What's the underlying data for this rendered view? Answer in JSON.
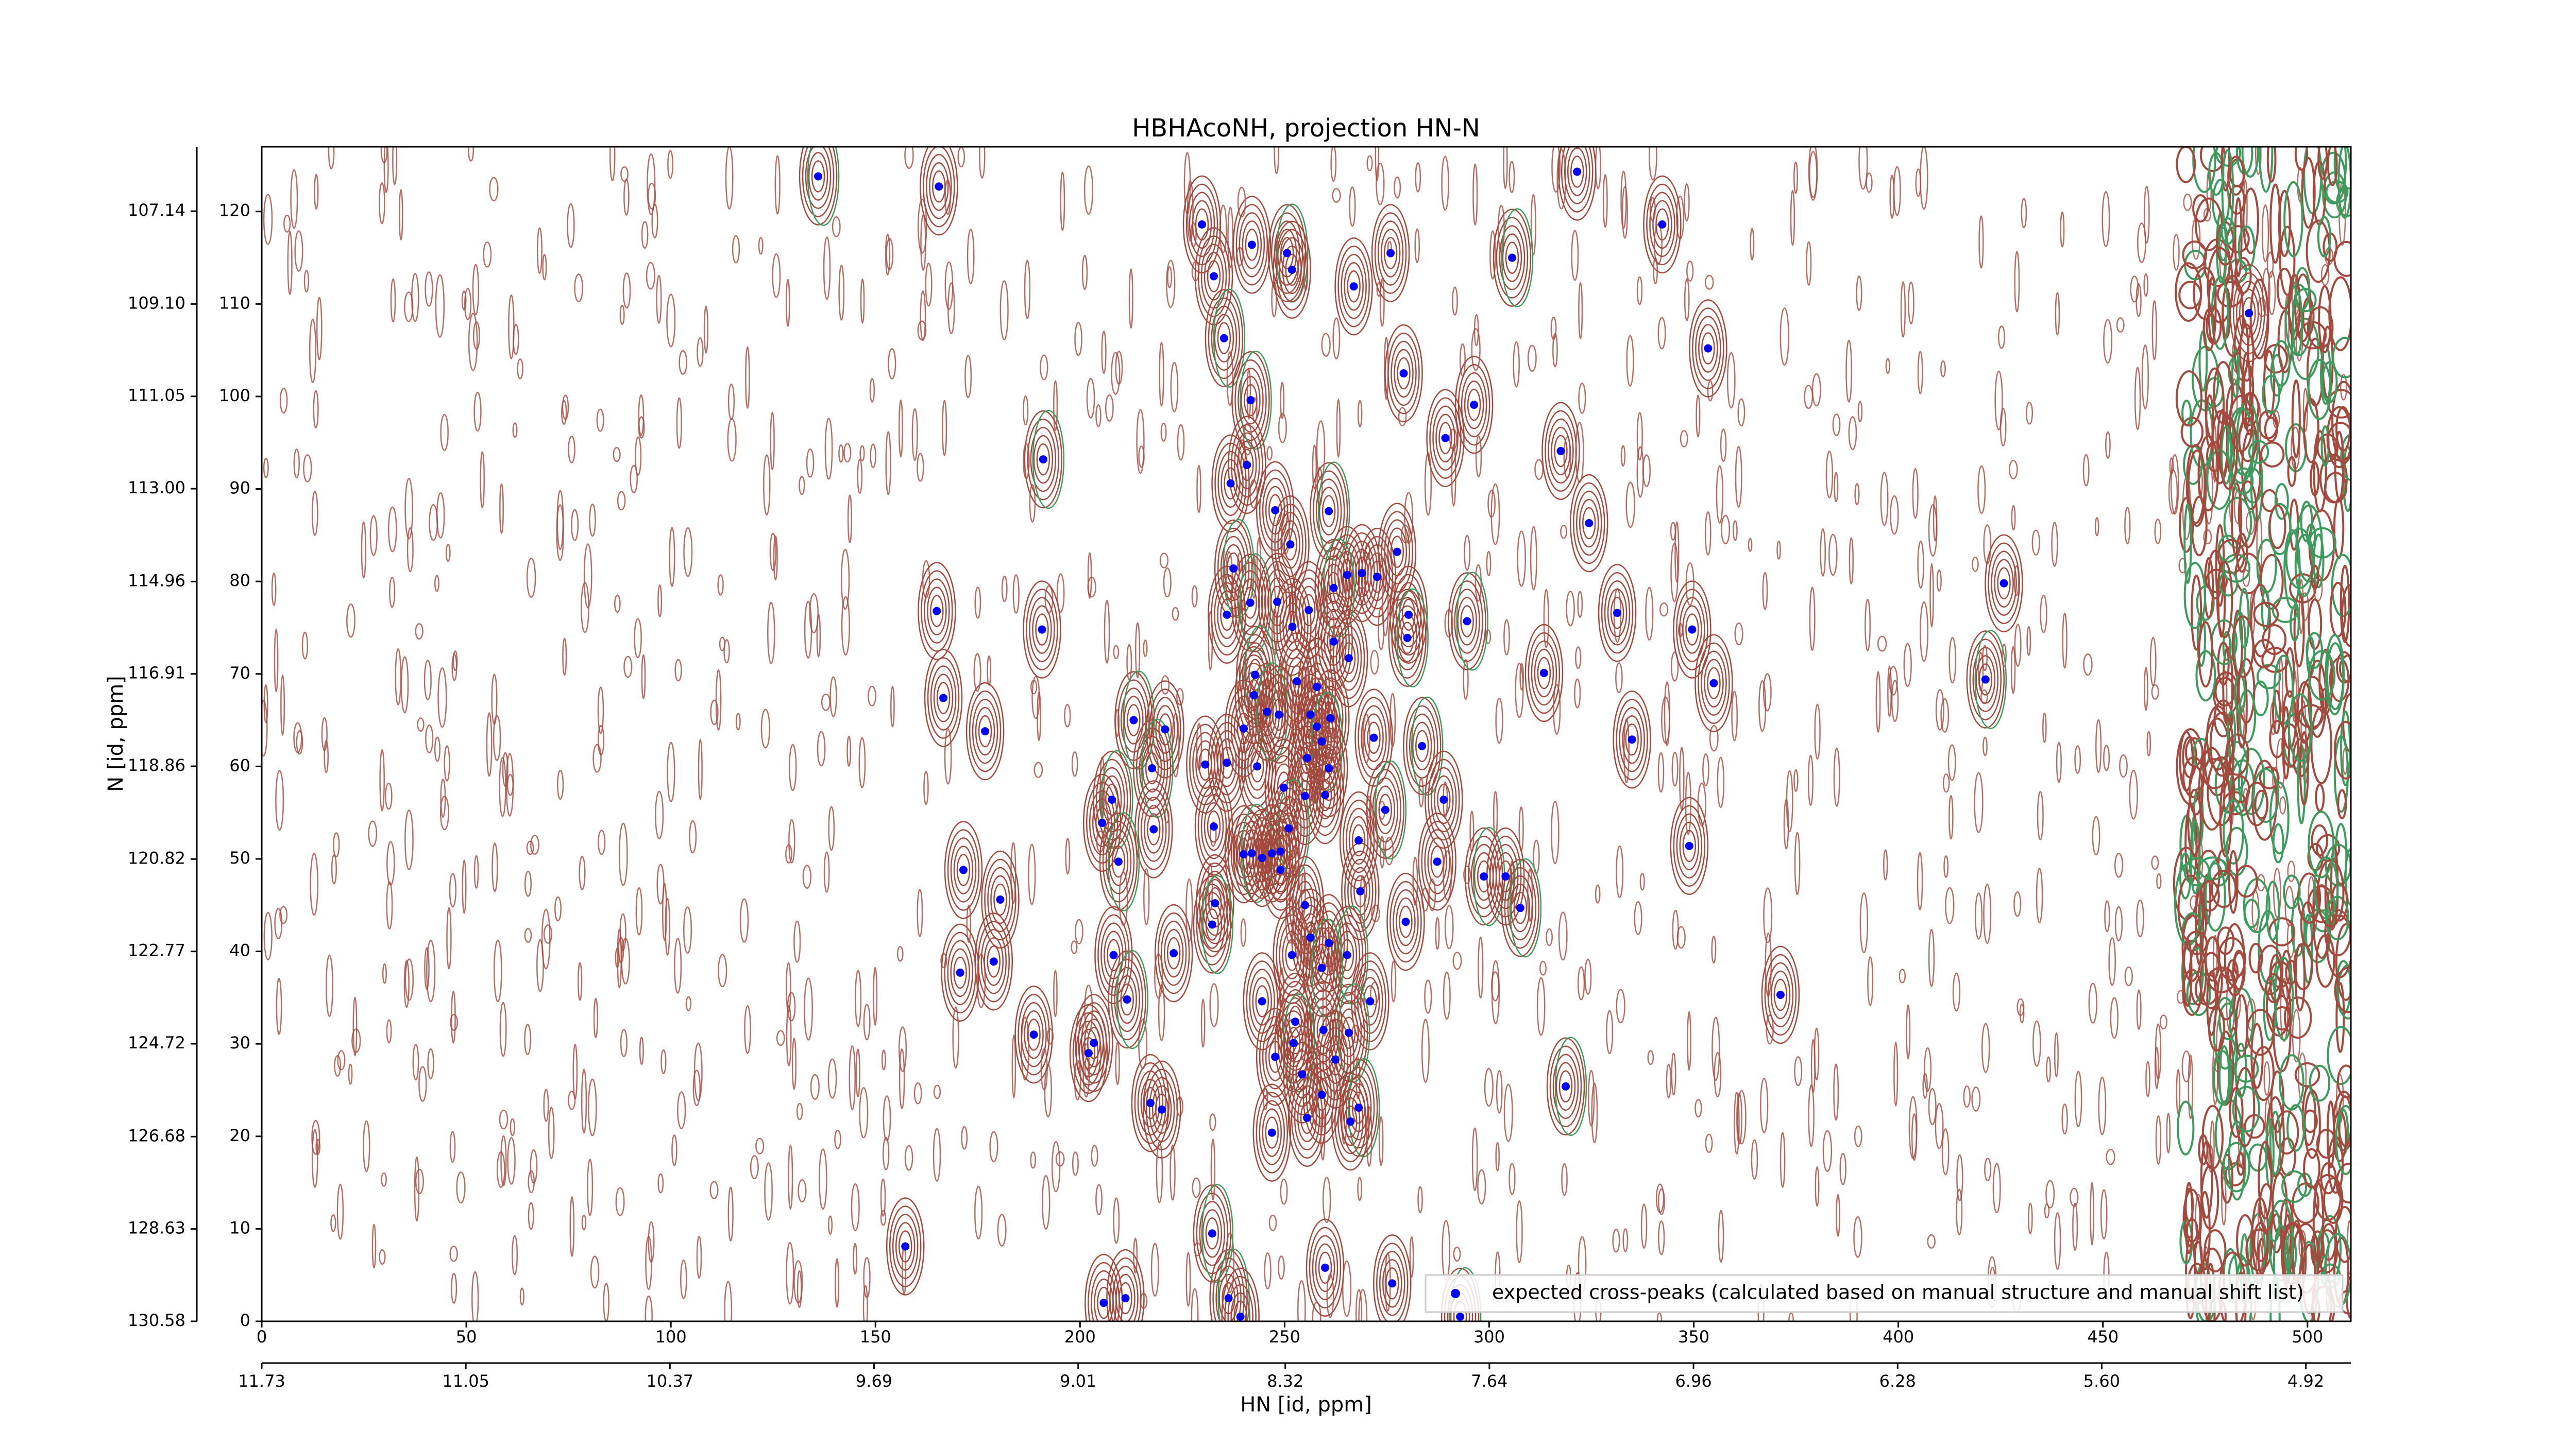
{
  "chart_data": {
    "type": "scatter",
    "title": "HBHAcoNH, projection HN-N",
    "x_label": "HN [id, ppm]",
    "y_label": "N [id, ppm]",
    "xlim": [
      0,
      510.6
    ],
    "ylim": [
      0,
      127
    ],
    "xticks": [
      0,
      50,
      100,
      150,
      200,
      250,
      300,
      350,
      400,
      450,
      500
    ],
    "yticks": [
      0,
      10,
      20,
      30,
      40,
      50,
      60,
      70,
      80,
      90,
      100,
      110,
      120
    ],
    "x2lim": [
      11.73,
      4.77
    ],
    "x2ticks": [
      11.73,
      11.05,
      10.37,
      9.69,
      9.01,
      8.32,
      7.64,
      6.96,
      6.28,
      {
        "value": 5.6,
        "label": "5.60"
      },
      4.92
    ],
    "y2lim": [
      130.58,
      105.78
    ],
    "y2ticks": [
      107.14,
      {
        "value": 109.1,
        "label": "109.10"
      },
      111.05,
      {
        "value": 113,
        "label": "113.00"
      },
      114.96,
      116.91,
      118.86,
      120.82,
      122.77,
      124.72,
      126.68,
      128.63,
      130.58
    ],
    "legend": "lower right",
    "series": [
      {
        "name": "expected cross-peaks (calculated based on manual structure and manual shift list)",
        "color": "#0000ff",
        "x": [
          136,
          165.5,
          229.8,
          242,
          250.6,
          251.8,
          266.9,
          275.9,
          305.6,
          321.5,
          342.3,
          232.7,
          235.2,
          353.5,
          485.7,
          279.1,
          241.7,
          296.3,
          289.3,
          317.5,
          191,
          240.8,
          236.8,
          247.7,
          260.8,
          324.4,
          251.4,
          277.5,
          237.5,
          268.9,
          272.6,
          265.3,
          262,
          425.8,
          165,
          235.9,
          241.6,
          248.2,
          255.9,
          280.3,
          294.6,
          331.3,
          190.7,
          251.9,
          280,
          349.6,
          262,
          265.7,
          242.8,
          253,
          257.9,
          313.4,
          421.3,
          354.9,
          166.6,
          242.5,
          245.7,
          248.6,
          256.3,
          261.2,
          213.1,
          240,
          220.8,
          257.9,
          259.1,
          176.8,
          271.8,
          334.9,
          283.6,
          255.5,
          235.9,
          230.6,
          217.6,
          243.3,
          260.8,
          249.8,
          207.8,
          288.9,
          259.9,
          255,
          274.6,
          205.4,
          232.7,
          218,
          251,
          268.1,
          348.9,
          240,
          242,
          244.5,
          246.9,
          249,
          209.4,
          287.3,
          171.5,
          249,
          298.7,
          304,
          268.5,
          180.5,
          307.6,
          233,
          255,
          279.6,
          232.3,
          256.3,
          260.8,
          251.8,
          265.3,
          208.2,
          222.9,
          178.9,
          259.1,
          170.7,
          371.2,
          244.5,
          211.5,
          270.9,
          252.6,
          259.5,
          265.7,
          188.7,
          203.4,
          202.1,
          252.2,
          247.7,
          262.4,
          254.3,
          318.7,
          259.1,
          217.2,
          220,
          268.1,
          255.5,
          266.1,
          246.9,
          232.3,
          157.3,
          259.9,
          276.3,
          236.3,
          205.8,
          211.1,
          239.2,
          292.9
        ],
        "values": [
          123.8,
          122.7,
          118.6,
          116.4,
          115.5,
          113.7,
          111.9,
          115.5,
          115,
          124.3,
          118.6,
          113,
          106.3,
          105.2,
          109,
          102.5,
          99.6,
          99.1,
          95.5,
          94.1,
          93.2,
          92.6,
          90.6,
          87.7,
          87.6,
          86.3,
          84,
          83.2,
          81.4,
          80.9,
          80.5,
          80.7,
          79.3,
          79.8,
          76.8,
          76.4,
          77.7,
          77.8,
          76.9,
          76.4,
          75.7,
          76.6,
          74.8,
          75.1,
          73.9,
          74.8,
          73.5,
          71.7,
          69.9,
          69.2,
          68.6,
          70.1,
          69.4,
          69,
          67.4,
          67.7,
          65.9,
          65.6,
          65.6,
          65.2,
          65,
          64.1,
          64,
          64.3,
          62.7,
          63.8,
          63.1,
          62.9,
          62.2,
          60.9,
          60.4,
          60.2,
          59.8,
          60,
          59.8,
          57.7,
          56.4,
          56.4,
          56.9,
          56.8,
          55.3,
          53.9,
          53.5,
          53.2,
          53.3,
          52,
          51.4,
          50.5,
          50.6,
          50.1,
          50.6,
          50.8,
          49.7,
          49.7,
          48.8,
          48.8,
          48.1,
          48.1,
          46.5,
          45.6,
          44.7,
          45.2,
          45,
          43.2,
          42.9,
          41.5,
          40.9,
          39.6,
          39.6,
          39.6,
          39.8,
          38.9,
          38.2,
          37.7,
          35.3,
          34.6,
          34.8,
          34.6,
          32.4,
          31.5,
          31.2,
          31,
          30.1,
          29,
          30.1,
          28.6,
          28.3,
          26.7,
          25.4,
          24.5,
          23.6,
          22.9,
          23.1,
          22,
          21.6,
          20.4,
          9.5,
          8.1,
          5.8,
          4.1,
          2.5,
          2,
          2.5,
          0.5,
          0.5
        ]
      }
    ]
  }
}
